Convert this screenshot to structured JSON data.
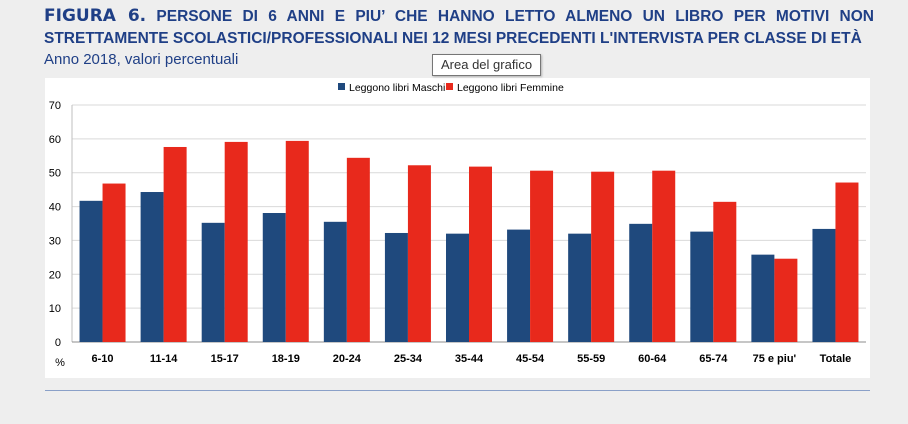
{
  "header": {
    "figure_label": "FIGURA 6.",
    "title": "PERSONE DI 6 ANNI E PIU’ CHE HANNO LETTO ALMENO UN LIBRO PER MOTIVI NON STRETTAMENTE SCOLASTICI/PROFESSIONALI NEI 12 MESI PRECEDENTI L'INTERVISTA PER CLASSE DI ETÀ",
    "subtitle": "Anno 2018, valori percentuali"
  },
  "tooltip": {
    "text": "Area del grafico"
  },
  "colors": {
    "maschi": "#1f497d",
    "femmine": "#e8291c",
    "title": "#1f3f86"
  },
  "chart_data": {
    "type": "bar",
    "ylabel": "%",
    "ylim": [
      0,
      70
    ],
    "yticks": [
      0,
      10,
      20,
      30,
      40,
      50,
      60,
      70
    ],
    "grid": true,
    "legend_position": "top",
    "categories": [
      "6-10",
      "11-14",
      "15-17",
      "18-19",
      "20-24",
      "25-34",
      "35-44",
      "45-54",
      "55-59",
      "60-64",
      "65-74",
      "75 e piu'",
      "Totale"
    ],
    "series": [
      {
        "name": "Leggono libri Maschi",
        "color": "#1f497d",
        "values": [
          41.7,
          44.3,
          35.2,
          38.1,
          35.5,
          32.2,
          32.0,
          33.2,
          32.0,
          34.9,
          32.6,
          25.8,
          33.4
        ]
      },
      {
        "name": "Leggono libri Femmine",
        "color": "#e8291c",
        "values": [
          46.8,
          57.6,
          59.1,
          59.4,
          54.4,
          52.2,
          51.8,
          50.6,
          50.3,
          50.6,
          41.4,
          24.6,
          47.1
        ]
      }
    ]
  }
}
